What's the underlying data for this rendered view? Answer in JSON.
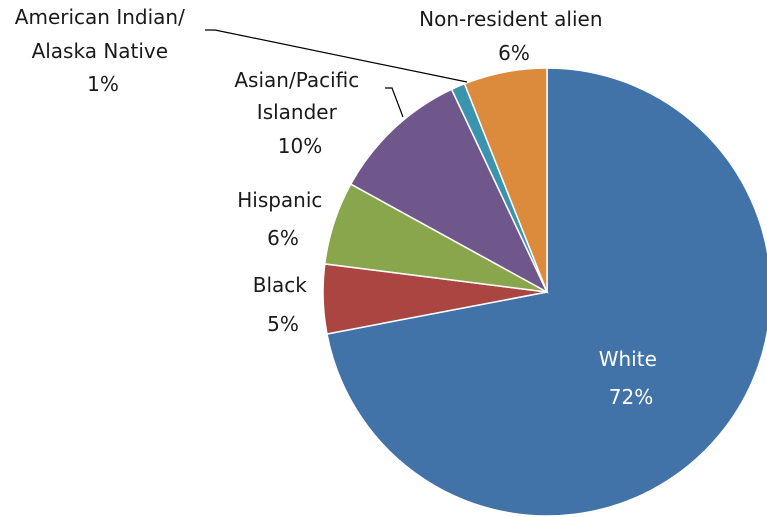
{
  "chart_data": {
    "type": "pie",
    "title": "",
    "slices": [
      {
        "label": "White",
        "value": 72,
        "display": "72%",
        "color": "#4273a8"
      },
      {
        "label": "Black",
        "value": 5,
        "display": "5%",
        "color": "#ab4542"
      },
      {
        "label": "Hispanic",
        "value": 6,
        "display": "6%",
        "color": "#89a64d"
      },
      {
        "label": "Asian/Pacific Islander",
        "value": 10,
        "display": "10%",
        "color": "#6f568b"
      },
      {
        "label": "American Indian/ Alaska Native",
        "value": 1,
        "display": "1%",
        "color": "#3c93ad"
      },
      {
        "label": "Non-resident alien",
        "value": 6,
        "display": "6%",
        "color": "#dc8a3c"
      }
    ],
    "labels": {
      "white": [
        "White",
        "72%"
      ],
      "black": [
        "Black",
        "5%"
      ],
      "hispanic": [
        "Hispanic",
        "6%"
      ],
      "asian": [
        "Asian/Pacific",
        "Islander",
        "10%"
      ],
      "american_indian": [
        "American Indian/",
        "Alaska Native",
        "1%"
      ],
      "nonresident": [
        "Non-resident alien",
        "6%"
      ]
    }
  }
}
